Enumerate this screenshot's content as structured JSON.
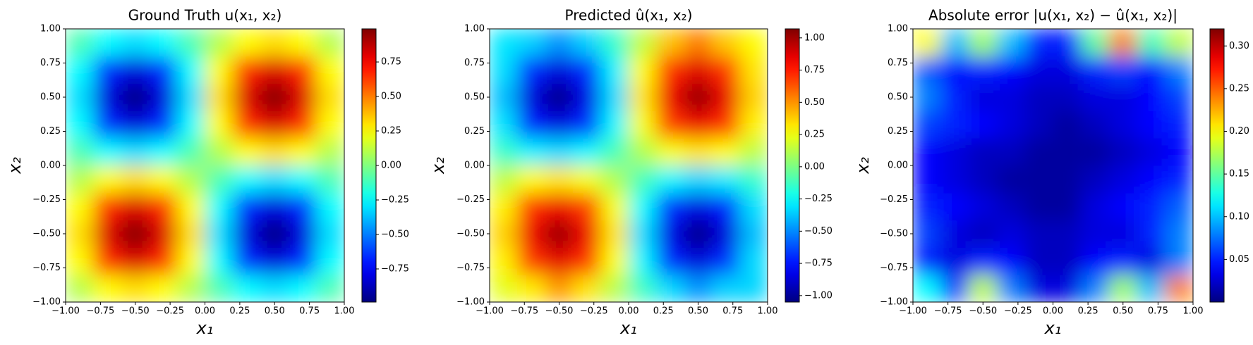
{
  "chart_data": [
    {
      "type": "heatmap",
      "title": "Ground Truth u(x₁, x₂)",
      "xlabel": "x₁",
      "ylabel": "x₂",
      "colormap": "jet",
      "x": [
        -0.9,
        -0.7,
        -0.5,
        -0.3,
        -0.1,
        0.1,
        0.3,
        0.5,
        0.7,
        0.9
      ],
      "y": [
        -0.9,
        -0.7,
        -0.5,
        -0.3,
        -0.1,
        0.1,
        0.3,
        0.5,
        0.7,
        0.9
      ],
      "z": [
        [
          0.1,
          0.25,
          0.31,
          0.25,
          0.1,
          -0.1,
          -0.25,
          -0.31,
          -0.25,
          -0.1
        ],
        [
          0.25,
          0.66,
          0.81,
          0.66,
          0.25,
          -0.25,
          -0.66,
          -0.81,
          -0.66,
          -0.25
        ],
        [
          0.31,
          0.81,
          1,
          0.81,
          0.31,
          -0.31,
          -0.81,
          -1,
          -0.81,
          -0.31
        ],
        [
          0.25,
          0.66,
          0.81,
          0.66,
          0.25,
          -0.25,
          -0.66,
          -0.81,
          -0.66,
          -0.25
        ],
        [
          0.1,
          0.25,
          0.31,
          0.25,
          0.1,
          -0.1,
          -0.25,
          -0.31,
          -0.25,
          -0.1
        ],
        [
          -0.1,
          -0.25,
          -0.31,
          -0.25,
          -0.1,
          0.1,
          0.25,
          0.31,
          0.25,
          0.1
        ],
        [
          -0.25,
          -0.66,
          -0.81,
          -0.66,
          -0.25,
          0.25,
          0.66,
          0.81,
          0.66,
          0.25
        ],
        [
          -0.31,
          -0.81,
          -1,
          -0.81,
          -0.31,
          0.31,
          0.81,
          1,
          0.81,
          0.31
        ],
        [
          -0.25,
          -0.66,
          -0.81,
          -0.66,
          -0.25,
          0.25,
          0.66,
          0.81,
          0.66,
          0.25
        ],
        [
          -0.1,
          -0.25,
          -0.31,
          -0.25,
          -0.1,
          0.1,
          0.25,
          0.31,
          0.25,
          0.1
        ]
      ],
      "xlim": [
        -1,
        1
      ],
      "ylim": [
        -1,
        1
      ],
      "xticks": [
        {
          "value": -1,
          "label": "−1.00"
        },
        {
          "value": -0.75,
          "label": "−0.75"
        },
        {
          "value": -0.5,
          "label": "−0.50"
        },
        {
          "value": -0.25,
          "label": "−0.25"
        },
        {
          "value": 0,
          "label": "0.00"
        },
        0.25,
        {
          "value": 0.5,
          "label": "0.50"
        },
        0.75,
        {
          "value": 1,
          "label": "1.00"
        }
      ],
      "yticks": [
        {
          "value": -1,
          "label": "−1.00"
        },
        {
          "value": -0.75,
          "label": "−0.75"
        },
        {
          "value": -0.5,
          "label": "−0.50"
        },
        {
          "value": -0.25,
          "label": "−0.25"
        },
        {
          "value": 0,
          "label": "0.00"
        },
        0.25,
        {
          "value": 0.5,
          "label": "0.50"
        },
        0.75,
        {
          "value": 1,
          "label": "1.00"
        }
      ],
      "clim": [
        -0.99,
        0.99
      ],
      "cticks": [
        {
          "value": -0.75,
          "label": "−0.75"
        },
        {
          "value": -0.5,
          "label": "−0.50"
        },
        {
          "value": -0.25,
          "label": "−0.25"
        },
        {
          "value": 0,
          "label": "0.00"
        },
        0.25,
        {
          "value": 0.5,
          "label": "0.50"
        },
        0.75
      ]
    },
    {
      "type": "heatmap",
      "title": "Predicted û(x₁, x₂)",
      "xlabel": "x₁",
      "ylabel": "x₂",
      "colormap": "jet",
      "x": [
        -0.9,
        -0.7,
        -0.5,
        -0.3,
        -0.1,
        0.1,
        0.3,
        0.5,
        0.7,
        0.9
      ],
      "y": [
        -0.9,
        -0.7,
        -0.5,
        -0.3,
        -0.1,
        0.1,
        0.3,
        0.5,
        0.7,
        0.9
      ],
      "z": [
        [
          0.22,
          0.31,
          0.49,
          0.33,
          0.13,
          -0.13,
          -0.33,
          -0.48,
          -0.35,
          -0.34
        ],
        [
          0.3,
          0.69,
          0.86,
          0.7,
          0.27,
          -0.27,
          -0.7,
          -0.86,
          -0.69,
          -0.33
        ],
        [
          0.37,
          0.84,
          1.02,
          0.84,
          0.33,
          -0.33,
          -0.84,
          -1.03,
          -0.86,
          -0.39
        ],
        [
          0.3,
          0.7,
          0.84,
          0.68,
          0.26,
          -0.26,
          -0.69,
          -0.85,
          -0.71,
          -0.32
        ],
        [
          0.14,
          0.28,
          0.33,
          0.26,
          0.11,
          -0.11,
          -0.27,
          -0.34,
          -0.29,
          -0.15
        ],
        [
          -0.14,
          -0.28,
          -0.33,
          -0.27,
          -0.11,
          0.11,
          0.26,
          0.33,
          0.28,
          0.14
        ],
        [
          -0.31,
          -0.71,
          -0.85,
          -0.69,
          -0.27,
          0.26,
          0.68,
          0.84,
          0.7,
          0.3
        ],
        [
          -0.39,
          -0.86,
          -1.03,
          -0.84,
          -0.33,
          0.33,
          0.84,
          1.03,
          0.85,
          0.37
        ],
        [
          -0.32,
          -0.7,
          -0.86,
          -0.7,
          -0.28,
          0.28,
          0.71,
          0.87,
          0.7,
          0.33
        ],
        [
          -0.3,
          -0.35,
          -0.48,
          -0.35,
          -0.15,
          0.15,
          0.4,
          0.55,
          0.39,
          0.28
        ]
      ],
      "xlim": [
        -1,
        1
      ],
      "ylim": [
        -1,
        1
      ],
      "xticks": [
        {
          "value": -1,
          "label": "−1.00"
        },
        {
          "value": -0.75,
          "label": "−0.75"
        },
        {
          "value": -0.5,
          "label": "−0.50"
        },
        {
          "value": -0.25,
          "label": "−0.25"
        },
        {
          "value": 0,
          "label": "0.00"
        },
        0.25,
        {
          "value": 0.5,
          "label": "0.50"
        },
        0.75,
        {
          "value": 1,
          "label": "1.00"
        }
      ],
      "yticks": [
        {
          "value": -1,
          "label": "−1.00"
        },
        {
          "value": -0.75,
          "label": "−0.75"
        },
        {
          "value": -0.5,
          "label": "−0.50"
        },
        {
          "value": -0.25,
          "label": "−0.25"
        },
        {
          "value": 0,
          "label": "0.00"
        },
        0.25,
        {
          "value": 0.5,
          "label": "0.50"
        },
        0.75,
        {
          "value": 1,
          "label": "1.00"
        }
      ],
      "clim": [
        -1.05,
        1.07
      ],
      "cticks": [
        {
          "value": -1,
          "label": "−1.00"
        },
        {
          "value": -0.75,
          "label": "−0.75"
        },
        {
          "value": -0.5,
          "label": "−0.50"
        },
        {
          "value": -0.25,
          "label": "−0.25"
        },
        {
          "value": 0,
          "label": "0.00"
        },
        0.25,
        {
          "value": 0.5,
          "label": "0.50"
        },
        0.75,
        {
          "value": 1,
          "label": "1.00"
        }
      ]
    },
    {
      "type": "heatmap",
      "title": "Absolute error |u(x₁, x₂) − û(x₁, x₂)|",
      "xlabel": "x₁",
      "ylabel": "x₂",
      "colormap": "jet",
      "x": [
        -0.9,
        -0.7,
        -0.5,
        -0.3,
        -0.1,
        0.1,
        0.3,
        0.5,
        0.7,
        0.9
      ],
      "y": [
        -0.9,
        -0.7,
        -0.5,
        -0.3,
        -0.1,
        0.1,
        0.3,
        0.5,
        0.7,
        0.9
      ],
      "z": [
        [
          0.12,
          0.06,
          0.18,
          0.08,
          0.03,
          0.03,
          0.08,
          0.17,
          0.1,
          0.24
        ],
        [
          0.05,
          0.03,
          0.05,
          0.04,
          0.02,
          0.02,
          0.04,
          0.05,
          0.03,
          0.08
        ],
        [
          0.06,
          0.03,
          0.02,
          0.03,
          0.02,
          0.02,
          0.03,
          0.03,
          0.05,
          0.08
        ],
        [
          0.05,
          0.04,
          0.03,
          0.02,
          0.01,
          0.01,
          0.03,
          0.04,
          0.05,
          0.07
        ],
        [
          0.04,
          0.03,
          0.02,
          0.01,
          0.01,
          0.01,
          0.02,
          0.03,
          0.04,
          0.05
        ],
        [
          0.04,
          0.03,
          0.02,
          0.02,
          0.01,
          0.01,
          0.01,
          0.02,
          0.03,
          0.04
        ],
        [
          0.06,
          0.05,
          0.04,
          0.03,
          0.02,
          0.01,
          0.02,
          0.03,
          0.04,
          0.05
        ],
        [
          0.08,
          0.05,
          0.03,
          0.03,
          0.02,
          0.02,
          0.03,
          0.03,
          0.04,
          0.06
        ],
        [
          0.07,
          0.04,
          0.05,
          0.04,
          0.03,
          0.03,
          0.05,
          0.06,
          0.04,
          0.08
        ],
        [
          0.2,
          0.1,
          0.17,
          0.1,
          0.05,
          0.05,
          0.15,
          0.24,
          0.14,
          0.18
        ]
      ],
      "xlim": [
        -1,
        1
      ],
      "ylim": [
        -1,
        1
      ],
      "xticks": [
        {
          "value": -1,
          "label": "−1.00"
        },
        {
          "value": -0.75,
          "label": "−0.75"
        },
        {
          "value": -0.5,
          "label": "−0.50"
        },
        {
          "value": -0.25,
          "label": "−0.25"
        },
        {
          "value": 0,
          "label": "0.00"
        },
        0.25,
        {
          "value": 0.5,
          "label": "0.50"
        },
        0.75,
        {
          "value": 1,
          "label": "1.00"
        }
      ],
      "yticks": [
        {
          "value": -1,
          "label": "−1.00"
        },
        {
          "value": -0.75,
          "label": "−0.75"
        },
        {
          "value": -0.5,
          "label": "−0.50"
        },
        {
          "value": -0.25,
          "label": "−0.25"
        },
        {
          "value": 0,
          "label": "0.00"
        },
        0.25,
        {
          "value": 0.5,
          "label": "0.50"
        },
        0.75,
        {
          "value": 1,
          "label": "1.00"
        }
      ],
      "clim": [
        0,
        0.32
      ],
      "cticks": [
        0.05,
        {
          "value": 0.1,
          "label": "0.10"
        },
        0.15,
        {
          "value": 0.2,
          "label": "0.20"
        },
        0.25,
        {
          "value": 0.3,
          "label": "0.30"
        }
      ]
    }
  ]
}
